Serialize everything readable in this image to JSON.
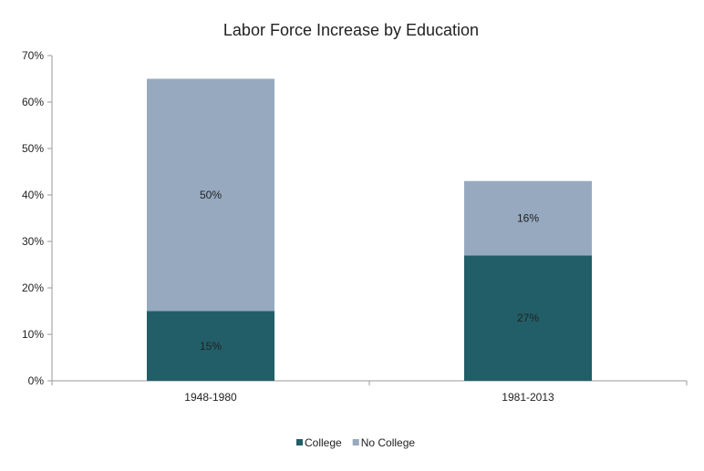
{
  "chart_data": {
    "type": "bar",
    "stacked": true,
    "title": "Labor Force Increase by Education",
    "categories": [
      "1948-1980",
      "1981-2013"
    ],
    "series": [
      {
        "name": "College",
        "values": [
          15,
          27
        ],
        "labels": [
          "15%",
          "27%"
        ],
        "color": "#225e68"
      },
      {
        "name": "No College",
        "values": [
          50,
          16
        ],
        "labels": [
          "50%",
          "16%"
        ],
        "color": "#96a9bf"
      }
    ],
    "ylim": [
      0,
      70
    ],
    "yticks": [
      0,
      10,
      20,
      30,
      40,
      50,
      60,
      70
    ],
    "ytick_labels": [
      "0%",
      "10%",
      "20%",
      "30%",
      "40%",
      "50%",
      "60%",
      "70%"
    ],
    "grid": false,
    "legend_position": "bottom"
  }
}
